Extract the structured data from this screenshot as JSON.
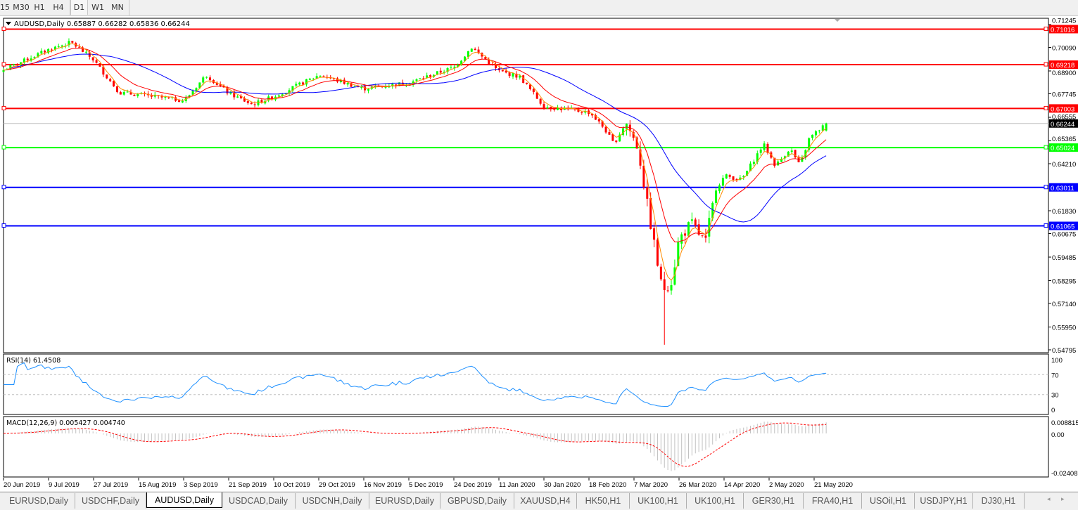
{
  "timeframes": {
    "items": [
      "15",
      "M30",
      "H1",
      "H4",
      "D1",
      "W1",
      "MN"
    ],
    "active": "D1"
  },
  "chart": {
    "symbol_line": "AUDUSD,Daily  0.65887 0.66282 0.65836 0.66244",
    "current_price": "0.66244",
    "price_ticks": [
      "0.71245",
      "0.70090",
      "0.68900",
      "0.67745",
      "0.66555",
      "0.65365",
      "0.64210",
      "0.61830",
      "0.60675",
      "0.59485",
      "0.58295",
      "0.57140",
      "0.55950",
      "0.54795"
    ],
    "levels": [
      {
        "price": "0.71016",
        "color": "#ff0000"
      },
      {
        "price": "0.69218",
        "color": "#ff0000"
      },
      {
        "price": "0.67003",
        "color": "#ff0000"
      },
      {
        "price": "0.65024",
        "color": "#00ff00"
      },
      {
        "price": "0.63011",
        "color": "#0000ff"
      },
      {
        "price": "0.61065",
        "color": "#0000ff"
      }
    ],
    "colors": {
      "bull": "#00ff00",
      "bear": "#ff0000",
      "ma_fast": "#ff8c00",
      "ma_mid": "#ff0000",
      "ma_slow": "#0000ff",
      "rsi": "#1e90ff",
      "macd_signal": "#ff0000",
      "macd_hist": "#c0c0c0"
    },
    "date_labels": [
      "20 Jun 2019",
      "9 Jul 2019",
      "27 Jul 2019",
      "15 Aug 2019",
      "3 Sep 2019",
      "21 Sep 2019",
      "10 Oct 2019",
      "29 Oct 2019",
      "16 Nov 2019",
      "5 Dec 2019",
      "24 Dec 2019",
      "11 Jan 2020",
      "30 Jan 2020",
      "18 Feb 2020",
      "7 Mar 2020",
      "26 Mar 2020",
      "14 Apr 2020",
      "2 May 2020",
      "21 May 2020"
    ]
  },
  "chart_data": {
    "type": "candlestick",
    "symbol": "AUDUSD",
    "timeframe": "Daily",
    "ylim": [
      0.54795,
      0.71245
    ],
    "approx_close_path": [
      {
        "date": "2019-06-20",
        "close": 0.6895
      },
      {
        "date": "2019-07-09",
        "close": 0.7
      },
      {
        "date": "2019-07-18",
        "close": 0.7035
      },
      {
        "date": "2019-07-27",
        "close": 0.695
      },
      {
        "date": "2019-08-07",
        "close": 0.678
      },
      {
        "date": "2019-08-15",
        "close": 0.677
      },
      {
        "date": "2019-09-03",
        "close": 0.674
      },
      {
        "date": "2019-09-12",
        "close": 0.687
      },
      {
        "date": "2019-09-21",
        "close": 0.678
      },
      {
        "date": "2019-10-01",
        "close": 0.672
      },
      {
        "date": "2019-10-10",
        "close": 0.676
      },
      {
        "date": "2019-10-29",
        "close": 0.687
      },
      {
        "date": "2019-11-16",
        "close": 0.68
      },
      {
        "date": "2019-12-05",
        "close": 0.683
      },
      {
        "date": "2019-12-24",
        "close": 0.691
      },
      {
        "date": "2019-12-31",
        "close": 0.701
      },
      {
        "date": "2020-01-11",
        "close": 0.689
      },
      {
        "date": "2020-01-20",
        "close": 0.686
      },
      {
        "date": "2020-01-30",
        "close": 0.671
      },
      {
        "date": "2020-02-18",
        "close": 0.668
      },
      {
        "date": "2020-02-24",
        "close": 0.66
      },
      {
        "date": "2020-02-28",
        "close": 0.652
      },
      {
        "date": "2020-03-04",
        "close": 0.663
      },
      {
        "date": "2020-03-09",
        "close": 0.65
      },
      {
        "date": "2020-03-13",
        "close": 0.62
      },
      {
        "date": "2020-03-19",
        "close": 0.578
      },
      {
        "date": "2020-03-23",
        "close": 0.583
      },
      {
        "date": "2020-03-26",
        "close": 0.604
      },
      {
        "date": "2020-03-31",
        "close": 0.612
      },
      {
        "date": "2020-04-06",
        "close": 0.602
      },
      {
        "date": "2020-04-10",
        "close": 0.629
      },
      {
        "date": "2020-04-14",
        "close": 0.636
      },
      {
        "date": "2020-04-21",
        "close": 0.634
      },
      {
        "date": "2020-04-30",
        "close": 0.652
      },
      {
        "date": "2020-05-05",
        "close": 0.641
      },
      {
        "date": "2020-05-11",
        "close": 0.65
      },
      {
        "date": "2020-05-15",
        "close": 0.641
      },
      {
        "date": "2020-05-19",
        "close": 0.655
      },
      {
        "date": "2020-05-26",
        "close": 0.66244
      }
    ],
    "rsi": {
      "label": "RSI(14) 61.4508",
      "levels": [
        "100",
        "70",
        "30",
        "0"
      ]
    },
    "macd": {
      "label": "MACD(12,26,9) 0.005427 0.004740",
      "ticks": [
        "0.008815",
        "0.00",
        "-0.024082"
      ]
    }
  },
  "tabs": {
    "items": [
      "EURUSD,Daily",
      "USDCHF,Daily",
      "AUDUSD,Daily",
      "USDCAD,Daily",
      "USDCNH,Daily",
      "EURUSD,Daily",
      "GBPUSD,Daily",
      "XAUUSD,H4",
      "HK50,H1",
      "UK100,H1",
      "UK100,H1",
      "GER30,H1",
      "FRA40,H1",
      "USOil,H1",
      "USDJPY,H1",
      "DJ30,H1"
    ],
    "active": "AUDUSD,Daily",
    "scroll_left": "◂",
    "scroll_right": "▸"
  }
}
